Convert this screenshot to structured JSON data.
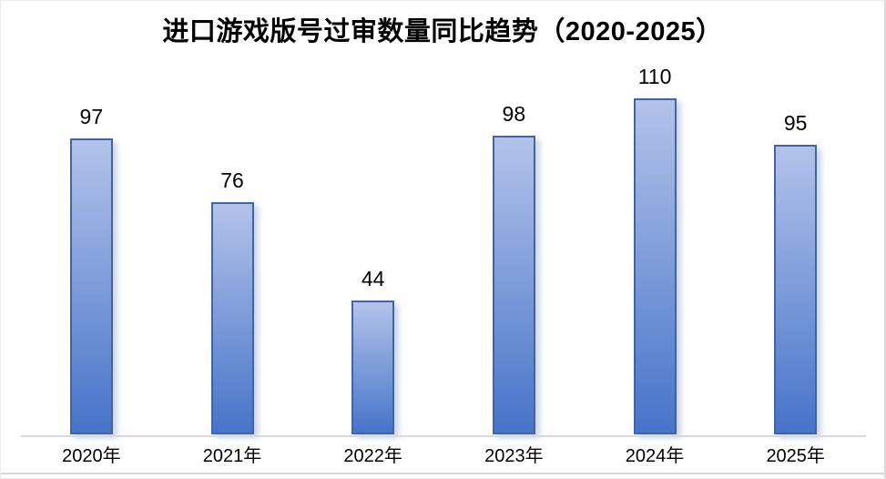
{
  "chart_data": {
    "type": "bar",
    "title": "进口游戏版号过审数量同比趋势（2020-2025）",
    "categories": [
      "2020年",
      "2021年",
      "2022年",
      "2023年",
      "2024年",
      "2025年"
    ],
    "values": [
      97,
      76,
      44,
      98,
      110,
      95
    ],
    "xlabel": "",
    "ylabel": "",
    "ylim": [
      0,
      120
    ],
    "grid": false,
    "legend": null,
    "data_labels_shown": true,
    "colors": {
      "bar_fill_top": "#b3c3ea",
      "bar_fill_bottom": "#4674c9",
      "bar_border": "#44639f",
      "bar_shadow": "rgba(145,165,210,0.45)",
      "axis_line": "#d9d9d9",
      "text": "#000000",
      "background": "#ffffff"
    }
  }
}
